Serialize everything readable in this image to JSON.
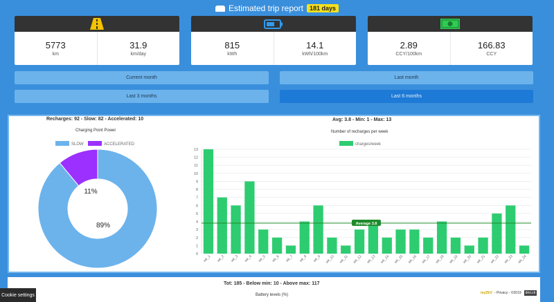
{
  "header": {
    "title": "Estimated trip report",
    "badge": "181 days"
  },
  "cards": [
    {
      "icon": "road-icon",
      "icon_color": "#f4c200",
      "stats": [
        {
          "value": "5773",
          "unit": "km"
        },
        {
          "value": "31.9",
          "unit": "km/day"
        }
      ]
    },
    {
      "icon": "battery-icon",
      "icon_color": "#2f9bf0",
      "stats": [
        {
          "value": "815",
          "unit": "kWh"
        },
        {
          "value": "14.1",
          "unit": "kWh/100km"
        }
      ]
    },
    {
      "icon": "money-icon",
      "icon_color": "#2ecc52",
      "stats": [
        {
          "value": "2.89",
          "unit": "CCY/100km"
        },
        {
          "value": "166.83",
          "unit": "CCY"
        }
      ]
    }
  ],
  "periods": {
    "current_month": "Current month",
    "last_month": "Last month",
    "last_3_months": "Last 3 months",
    "last_6_months": "Last 6 months"
  },
  "left": {
    "summary": "Recharges: 92 - Slow: 82 - Accelerated: 10",
    "chart_data": {
      "type": "pie",
      "title": "Charging Point Power",
      "labels": [
        "SLOW",
        "ACCELERATED"
      ],
      "values": [
        89,
        11
      ],
      "value_labels": [
        "89%",
        "11%"
      ],
      "colors": [
        "#6cb3ec",
        "#9b30ff"
      ],
      "legend": "top"
    }
  },
  "right": {
    "summary": "Avg: 3.8 - Min: 1 - Max: 13",
    "chart_data": {
      "type": "bar",
      "title": "Number of recharges per week",
      "series": [
        {
          "name": "charges/week",
          "color": "#2ecc71",
          "values": [
            13,
            7,
            6,
            9,
            3,
            2,
            1,
            4,
            6,
            2,
            1,
            3,
            4,
            2,
            3,
            3,
            2,
            4,
            2,
            1,
            2,
            5,
            6,
            1
          ]
        }
      ],
      "categories": [
        "wk_1",
        "wk_2",
        "wk_3",
        "wk_4",
        "wk_5",
        "wk_6",
        "wk_7",
        "wk_8",
        "wk_9",
        "wk_10",
        "wk_11",
        "wk_12",
        "wk_13",
        "wk_14",
        "wk_15",
        "wk_16",
        "wk_17",
        "wk_18",
        "wk_19",
        "wk_20",
        "wk_21",
        "wk_22",
        "wk_23",
        "wk_24"
      ],
      "ylim": [
        0,
        13
      ],
      "yticks": [
        0,
        1,
        2,
        3,
        4,
        5,
        6,
        7,
        8,
        9,
        10,
        11,
        12,
        13
      ],
      "average": 3.8,
      "average_label": "Average 3.8",
      "average_color": "#1e8a2a",
      "grid": true,
      "legend": "top"
    }
  },
  "bottom": {
    "summary": "Tot: 185 - Below min: 10 - Above max: 117",
    "title": "Battery levels (%)"
  },
  "cookie": "Cookie settings",
  "footer": {
    "brand": "myZEV",
    "links": "- Privacy - ©2019",
    "logo": "dmi.cti"
  }
}
